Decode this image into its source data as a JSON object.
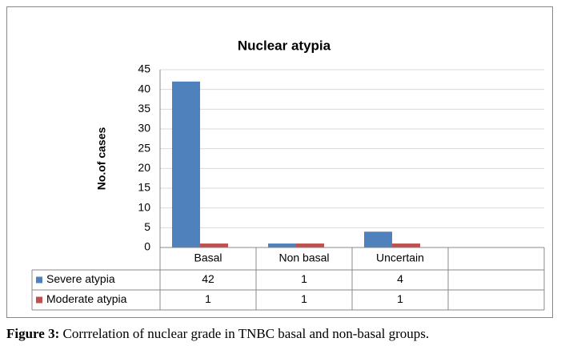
{
  "chart_data": {
    "type": "bar",
    "title": "Nuclear atypia",
    "y_label": "No.of cases",
    "categories": [
      "Basal",
      "Non basal",
      "Uncertain",
      null
    ],
    "series": [
      {
        "name": "Severe atypia",
        "color": "#4f81bd",
        "values": [
          42,
          1,
          4,
          null
        ]
      },
      {
        "name": "Moderate atypia",
        "color": "#c0504d",
        "values": [
          1,
          1,
          1,
          null
        ]
      }
    ],
    "ylim": [
      0,
      45
    ],
    "yticks": [
      0,
      5,
      10,
      15,
      20,
      25,
      30,
      35,
      40,
      45
    ],
    "grid": true,
    "data_table": true
  },
  "caption": {
    "label": "Figure 3:",
    "text": " Corrrelation of nuclear grade in TNBC basal and non-basal groups."
  }
}
